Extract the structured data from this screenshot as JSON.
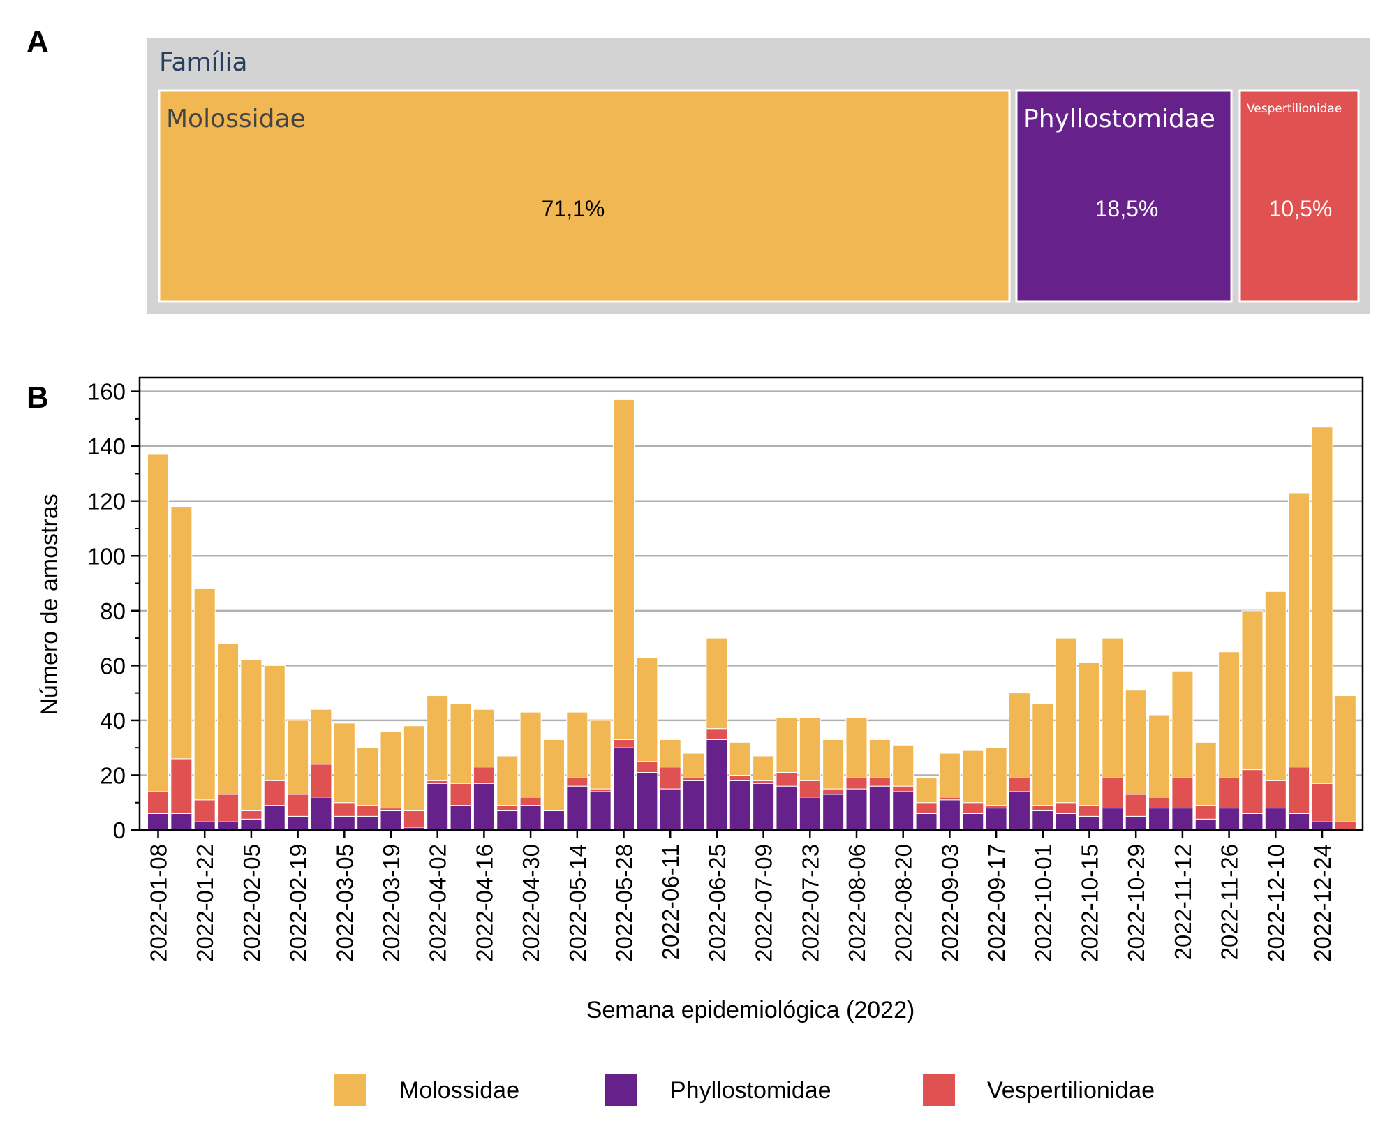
{
  "panels": {
    "a": "A",
    "b": "B"
  },
  "colors": {
    "Molossidae": "#f0b752",
    "Phyllostomidae": "#66228a",
    "Vespertilionidae": "#e05252",
    "treemap_background": "#d3d3d3",
    "grid": "#b0b0b0"
  },
  "chart_data": [
    {
      "type": "treemap",
      "header": "Família",
      "items": [
        {
          "name": "Molossidae",
          "share": 71.1,
          "label": "71,1%"
        },
        {
          "name": "Phyllostomidae",
          "share": 18.5,
          "label": "18,5%"
        },
        {
          "name": "Vespertilionidae",
          "share": 10.5,
          "label": "10,5%"
        }
      ]
    },
    {
      "type": "bar",
      "stacked": true,
      "title": "",
      "xlabel": "Semana epidemiológica (2022)",
      "ylabel": "Número de amostras",
      "ylim": [
        0,
        165
      ],
      "yticks": [
        0,
        20,
        40,
        60,
        80,
        100,
        120,
        140,
        160
      ],
      "grid": "horizontal",
      "legend_placement": "bottom",
      "x": [
        "2022-01-08",
        "2022-01-15",
        "2022-01-22",
        "2022-01-29",
        "2022-02-05",
        "2022-02-12",
        "2022-02-19",
        "2022-02-26",
        "2022-03-05",
        "2022-03-12",
        "2022-03-19",
        "2022-03-26",
        "2022-04-02",
        "2022-04-09",
        "2022-04-16",
        "2022-04-23",
        "2022-04-30",
        "2022-05-07",
        "2022-05-14",
        "2022-05-21",
        "2022-05-28",
        "2022-06-04",
        "2022-06-11",
        "2022-06-18",
        "2022-06-25",
        "2022-07-02",
        "2022-07-09",
        "2022-07-16",
        "2022-07-23",
        "2022-07-30",
        "2022-08-06",
        "2022-08-13",
        "2022-08-20",
        "2022-08-27",
        "2022-09-03",
        "2022-09-10",
        "2022-09-17",
        "2022-09-24",
        "2022-10-01",
        "2022-10-08",
        "2022-10-15",
        "2022-10-22",
        "2022-10-29",
        "2022-11-05",
        "2022-11-12",
        "2022-11-19",
        "2022-11-26",
        "2022-12-03",
        "2022-12-10",
        "2022-12-17",
        "2022-12-24",
        "2022-12-31"
      ],
      "xtick_labels": [
        "2022-01-08",
        "2022-01-22",
        "2022-02-05",
        "2022-02-19",
        "2022-03-05",
        "2022-03-19",
        "2022-04-02",
        "2022-04-16",
        "2022-04-30",
        "2022-05-14",
        "2022-05-28",
        "2022-06-11",
        "2022-06-25",
        "2022-07-09",
        "2022-07-23",
        "2022-08-06",
        "2022-08-20",
        "2022-09-03",
        "2022-09-17",
        "2022-10-01",
        "2022-10-15",
        "2022-10-29",
        "2022-11-12",
        "2022-11-26",
        "2022-12-10",
        "2022-12-24"
      ],
      "series": [
        {
          "name": "Phyllostomidae",
          "values": [
            6,
            6,
            3,
            3,
            4,
            9,
            5,
            12,
            5,
            5,
            7,
            1,
            17,
            9,
            17,
            7,
            9,
            7,
            16,
            14,
            30,
            21,
            15,
            18,
            33,
            18,
            17,
            16,
            12,
            13,
            15,
            16,
            14,
            6,
            11,
            6,
            8,
            14,
            7,
            6,
            5,
            8,
            5,
            8,
            8,
            4,
            8,
            6,
            8,
            6,
            3,
            0
          ]
        },
        {
          "name": "Vespertilionidae",
          "values": [
            8,
            20,
            8,
            10,
            3,
            9,
            8,
            12,
            5,
            4,
            1,
            6,
            1,
            8,
            6,
            2,
            3,
            0,
            3,
            1,
            3,
            4,
            8,
            1,
            4,
            2,
            1,
            5,
            6,
            2,
            4,
            3,
            2,
            4,
            1,
            4,
            1,
            5,
            2,
            4,
            4,
            11,
            8,
            4,
            11,
            5,
            11,
            16,
            10,
            17,
            14,
            3
          ]
        },
        {
          "name": "Molossidae",
          "values": [
            123,
            92,
            77,
            55,
            55,
            42,
            27,
            20,
            29,
            21,
            28,
            31,
            31,
            29,
            21,
            18,
            31,
            26,
            24,
            25,
            124,
            38,
            10,
            9,
            33,
            12,
            9,
            20,
            23,
            18,
            22,
            14,
            15,
            9,
            16,
            19,
            21,
            31,
            37,
            60,
            52,
            51,
            38,
            30,
            39,
            23,
            46,
            58,
            69,
            100,
            130,
            46
          ]
        }
      ],
      "totals": [
        137,
        118,
        88,
        68,
        62,
        60,
        40,
        44,
        39,
        30,
        36,
        38,
        49,
        46,
        44,
        27,
        43,
        33,
        43,
        40,
        157,
        63,
        33,
        28,
        70,
        32,
        27,
        41,
        41,
        33,
        41,
        33,
        31,
        19,
        28,
        29,
        30,
        50,
        46,
        70,
        61,
        70,
        51,
        42,
        58,
        32,
        65,
        80,
        87,
        123,
        147,
        49
      ]
    }
  ],
  "legend": [
    {
      "name": "Molossidae"
    },
    {
      "name": "Phyllostomidae"
    },
    {
      "name": "Vespertilionidae"
    }
  ]
}
